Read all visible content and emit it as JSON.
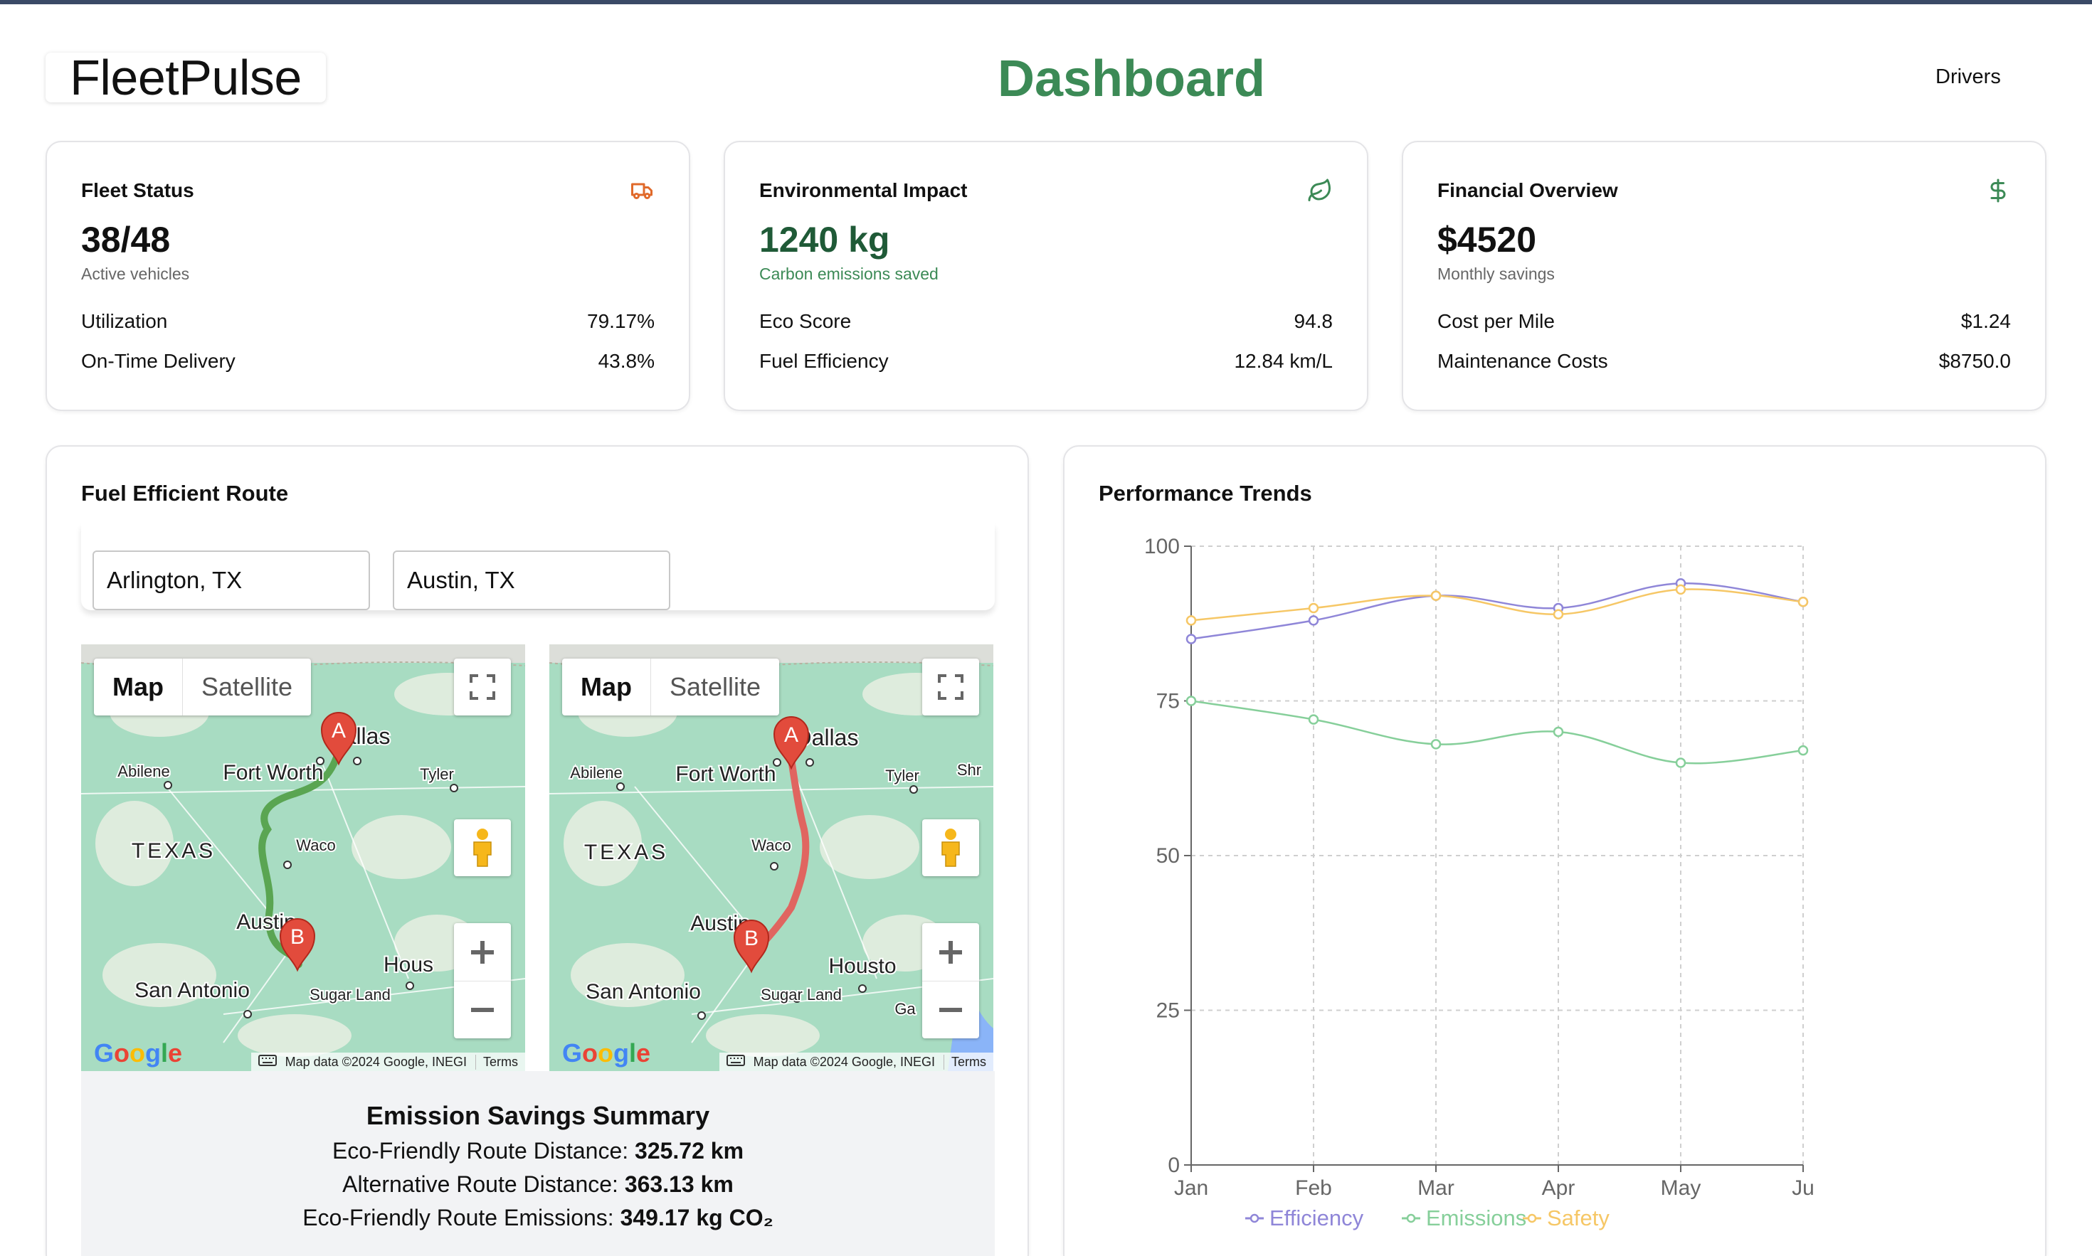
{
  "header": {
    "logo": "FleetPulse",
    "title": "Dashboard",
    "nav_drivers": "Drivers"
  },
  "colors": {
    "accent_green": "#3c8a56",
    "truck_icon": "#e06a2b",
    "efficiency": "#8f86d8",
    "emissions": "#86cf9a",
    "safety": "#f6c766"
  },
  "cards": {
    "fleet": {
      "title": "Fleet Status",
      "icon": "truck-icon",
      "value": "38/48",
      "sub": "Active vehicles",
      "rows": [
        {
          "label": "Utilization",
          "value": "79.17%"
        },
        {
          "label": "On-Time Delivery",
          "value": "43.8%"
        }
      ]
    },
    "environment": {
      "title": "Environmental Impact",
      "icon": "leaf-icon",
      "value": "1240 kg",
      "sub": "Carbon emissions saved",
      "rows": [
        {
          "label": "Eco Score",
          "value": "94.8"
        },
        {
          "label": "Fuel Efficiency",
          "value": "12.84 km/L"
        }
      ]
    },
    "financial": {
      "title": "Financial Overview",
      "icon": "dollar-icon",
      "value": "$4520",
      "sub": "Monthly savings",
      "rows": [
        {
          "label": "Cost per Mile",
          "value": "$1.24"
        },
        {
          "label": "Maintenance Costs",
          "value": "$8750.0"
        }
      ]
    }
  },
  "route": {
    "title": "Fuel Efficient Route",
    "origin": "Arlington, TX",
    "destination": "Austin, TX",
    "maps": [
      {
        "route_color": "#5aa552",
        "map_label": "Map",
        "satellite_label": "Satellite",
        "places": [
          "Dallas",
          "Fort Worth",
          "Abilene",
          "Tyler",
          "TEXAS",
          "Waco",
          "Austin",
          "Hous",
          "San Antonio",
          "Sugar Land"
        ],
        "marker_a": "A",
        "marker_b": "B",
        "google": "Google",
        "credit": "Map data ©2024 Google, INEGI",
        "terms": "Terms"
      },
      {
        "route_color": "#e06560",
        "map_label": "Map",
        "satellite_label": "Satellite",
        "places": [
          "Dallas",
          "Fort Worth",
          "Abilene",
          "Tyler",
          "TEXAS",
          "Waco",
          "Austin",
          "Housto",
          "San Antonio",
          "Sugar Land",
          "Shr",
          "Ga"
        ],
        "marker_a": "A",
        "marker_b": "B",
        "google": "Google",
        "credit": "Map data ©2024 Google, INEGI",
        "terms": "Terms"
      }
    ],
    "summary": {
      "title": "Emission Savings Summary",
      "lines": [
        {
          "label": "Eco-Friendly Route Distance:",
          "value": "325.72 km"
        },
        {
          "label": "Alternative Route Distance:",
          "value": "363.13 km"
        },
        {
          "label": "Eco-Friendly Route Emissions:",
          "value": "349.17 kg CO₂"
        }
      ]
    }
  },
  "trends": {
    "title": "Performance Trends"
  },
  "chart_data": {
    "type": "line",
    "title": "Performance Trends",
    "x": [
      "Jan",
      "Feb",
      "Mar",
      "Apr",
      "May",
      "Ju"
    ],
    "ylim": [
      0,
      100
    ],
    "yticks": [
      0,
      25,
      50,
      75,
      100
    ],
    "grid": true,
    "legend": "bottom",
    "series": [
      {
        "name": "Efficiency",
        "color": "#8f86d8",
        "values": [
          85,
          88,
          92,
          90,
          94,
          91
        ]
      },
      {
        "name": "Emissions",
        "color": "#86cf9a",
        "values": [
          75,
          72,
          68,
          70,
          65,
          67
        ]
      },
      {
        "name": "Safety",
        "color": "#f6c766",
        "values": [
          88,
          90,
          92,
          89,
          93,
          91
        ]
      }
    ]
  }
}
